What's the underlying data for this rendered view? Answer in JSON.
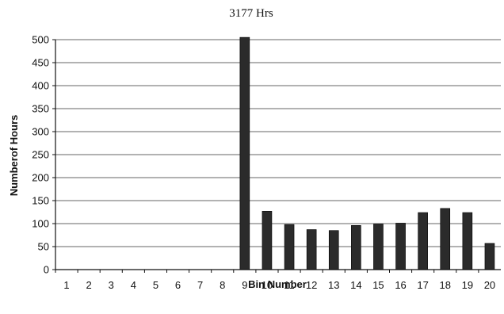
{
  "chart_data": {
    "type": "bar",
    "title": "3177 Hrs",
    "xlabel": "Bin Number",
    "ylabel": "Numberof Hours",
    "categories": [
      "1",
      "2",
      "3",
      "4",
      "5",
      "6",
      "7",
      "8",
      "9",
      "10",
      "11",
      "12",
      "13",
      "14",
      "15",
      "16",
      "17",
      "18",
      "19",
      "20"
    ],
    "values": [
      0,
      0,
      0,
      0,
      0,
      0,
      0,
      0,
      505,
      127,
      98,
      87,
      85,
      96,
      99,
      101,
      124,
      133,
      124,
      57
    ],
    "ylim": [
      0,
      500
    ],
    "yticks": [
      0,
      50,
      100,
      150,
      200,
      250,
      300,
      350,
      400,
      450,
      500
    ],
    "grid": true,
    "legend": "none",
    "bar_color": "#2b2b2b"
  }
}
